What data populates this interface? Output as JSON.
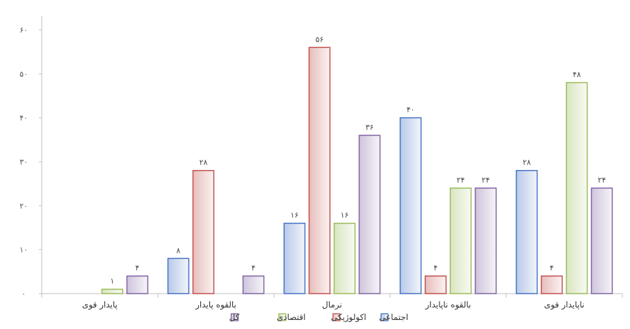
{
  "chart_data": {
    "type": "bar",
    "categories": [
      "پایدار قوی",
      "بالقوه پایدار",
      "نرمال",
      "بالقوه ناپایدار",
      "ناپایدار قوی"
    ],
    "series": [
      {
        "name": "اجتماعی",
        "values": [
          0,
          8,
          16,
          40,
          28
        ],
        "color": "#4472c4",
        "labels": [
          "",
          "۸",
          "۱۶",
          "۴۰",
          "۲۸"
        ]
      },
      {
        "name": "اکولوژیکی",
        "values": [
          0,
          28,
          56,
          4,
          4
        ],
        "color": "#c0504d",
        "labels": [
          "",
          "۲۸",
          "۵۶",
          "۴",
          "۴"
        ]
      },
      {
        "name": "اقتصادی",
        "values": [
          1,
          0,
          16,
          24,
          48
        ],
        "color": "#9bbb59",
        "labels": [
          "۱",
          "",
          "۱۶",
          "۲۴",
          "۴۸"
        ]
      },
      {
        "name": "کل",
        "values": [
          4,
          4,
          36,
          24,
          24
        ],
        "color": "#8064a2",
        "labels": [
          "۴",
          "۴",
          "۳۶",
          "۲۴",
          "۲۴"
        ]
      }
    ],
    "yticks": [
      {
        "value": 0,
        "label": "۰"
      },
      {
        "value": 10,
        "label": "۱۰"
      },
      {
        "value": 20,
        "label": "۲۰"
      },
      {
        "value": 30,
        "label": "۳۰"
      },
      {
        "value": 40,
        "label": "۴۰"
      },
      {
        "value": 50,
        "label": "۵۰"
      },
      {
        "value": 60,
        "label": "۶۰"
      }
    ],
    "ylim": [
      0,
      60
    ],
    "grid": false,
    "legend": "bottom"
  }
}
